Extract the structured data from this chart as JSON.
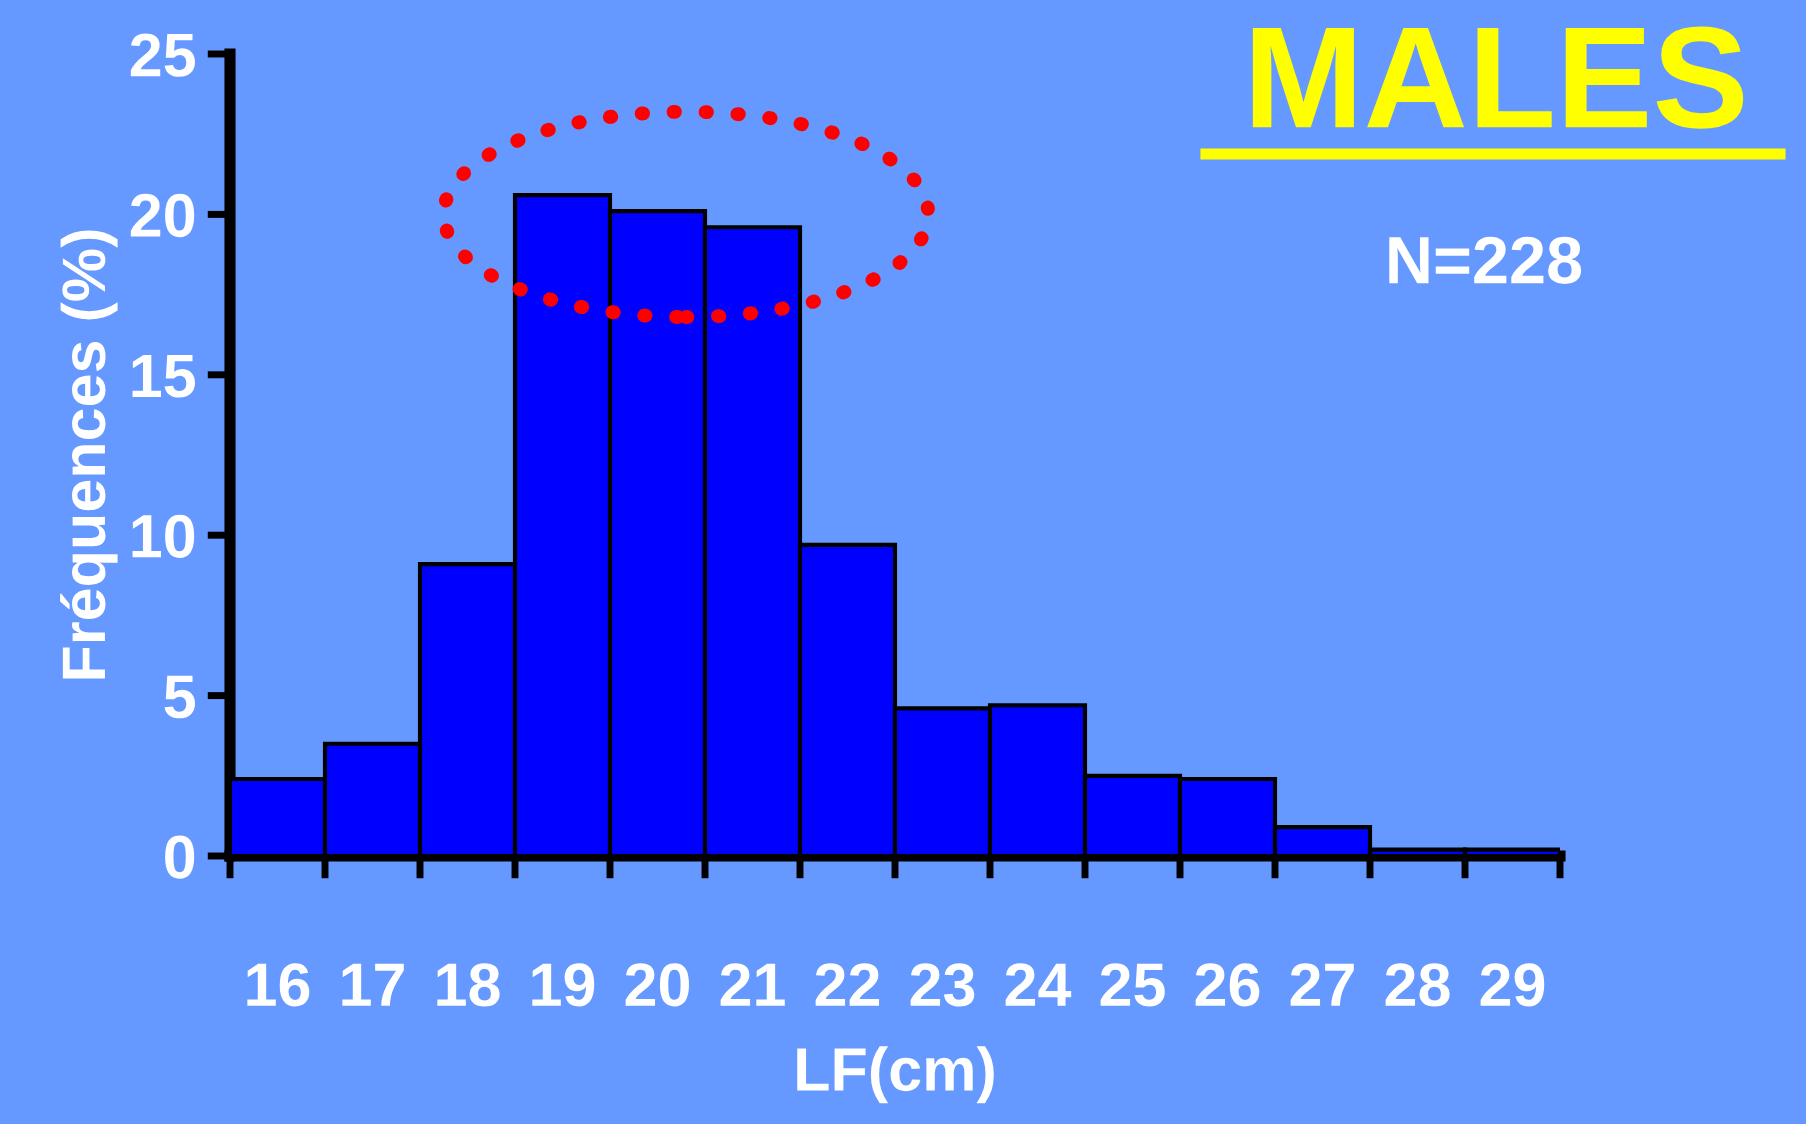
{
  "chart_data": {
    "type": "bar",
    "title": "MALES",
    "subtitle": "N=228",
    "xlabel": "LF(cm)",
    "ylabel": "Fréquences (%)",
    "categories": [
      "16",
      "17",
      "18",
      "19",
      "20",
      "21",
      "22",
      "23",
      "24",
      "25",
      "26",
      "27",
      "28",
      "29"
    ],
    "values": [
      2.4,
      3.5,
      9.1,
      20.6,
      20.1,
      19.6,
      9.7,
      4.6,
      4.7,
      2.5,
      2.4,
      0.9,
      0.2,
      0.2
    ],
    "color": "#0000ff",
    "ylim": [
      0,
      25
    ],
    "yticks": [
      0,
      5,
      10,
      15,
      20,
      25
    ],
    "grid": false,
    "legend": false
  }
}
